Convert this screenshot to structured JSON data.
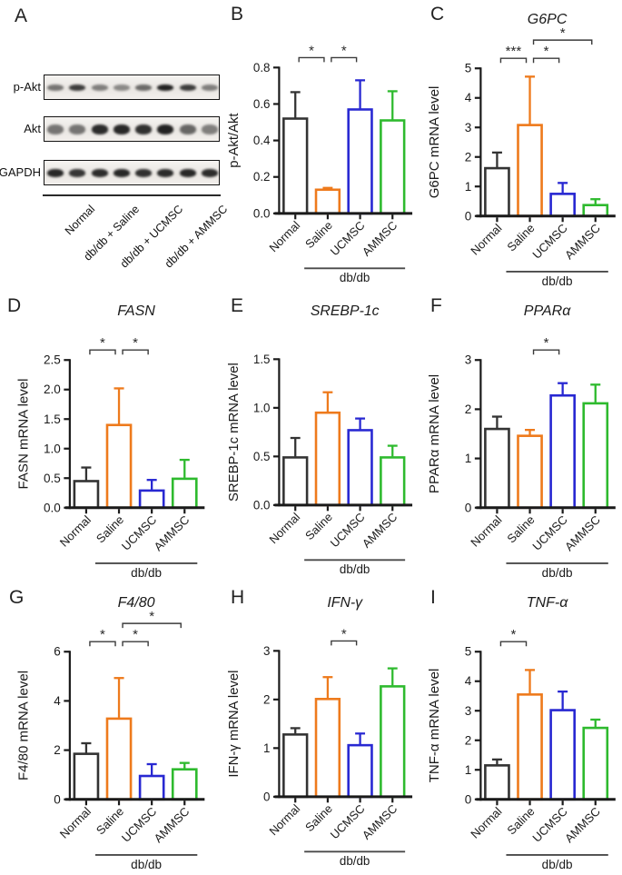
{
  "palette": {
    "black": "#333333",
    "orange": "#ee7a1c",
    "blue": "#2828d2",
    "green": "#2eba2e",
    "axis": "#1a1a1a"
  },
  "panel_a": {
    "panel_label": "A",
    "row_labels": [
      "p-Akt",
      "Akt",
      "GAPDH"
    ],
    "band_intensities": [
      [
        0.55,
        0.82,
        0.5,
        0.45,
        0.6,
        0.95,
        0.82,
        0.5
      ],
      [
        0.55,
        0.55,
        0.9,
        0.92,
        0.88,
        0.95,
        0.62,
        0.5
      ],
      [
        0.92,
        0.85,
        0.9,
        0.92,
        0.88,
        0.9,
        0.92,
        0.9
      ]
    ],
    "band_heights": [
      7,
      11,
      9
    ],
    "group_labels": [
      "Normal",
      "db/db + Saline",
      "db/db + UCMSC",
      "db/db + AMMSC"
    ]
  },
  "chart_data": [
    {
      "panel_label": "B",
      "type": "bar",
      "title": "",
      "ylabel": "p-Akt/Akt",
      "ylim": [
        0,
        0.8
      ],
      "yticks": [
        0,
        0.2,
        0.4,
        0.6,
        0.8
      ],
      "ytick_labels": [
        "0.0",
        "0.2",
        "0.4",
        "0.6",
        "0.8"
      ],
      "categories": [
        "Normal",
        "Saline",
        "UCMSC",
        "AMMSC"
      ],
      "values": [
        0.52,
        0.13,
        0.57,
        0.51
      ],
      "errors": [
        0.145,
        0.01,
        0.16,
        0.16
      ],
      "bar_colors": [
        "#333333",
        "#ee7a1c",
        "#2828d2",
        "#2eba2e"
      ],
      "significance": [
        {
          "from": 0,
          "to": 1,
          "label": "*",
          "level": 0
        },
        {
          "from": 1,
          "to": 2,
          "label": "*",
          "level": 0
        }
      ],
      "group_label": "db/db",
      "group_span": [
        1,
        3
      ]
    },
    {
      "panel_label": "C",
      "type": "bar",
      "title": "G6PC",
      "ylabel": "G6PC mRNA level",
      "ylim": [
        0,
        5
      ],
      "yticks": [
        0,
        1,
        2,
        3,
        4,
        5
      ],
      "ytick_labels": [
        "0",
        "1",
        "2",
        "3",
        "4",
        "5"
      ],
      "categories": [
        "Normal",
        "Saline",
        "UCMSC",
        "AMMSC"
      ],
      "values": [
        1.62,
        3.08,
        0.75,
        0.37
      ],
      "errors": [
        0.53,
        1.64,
        0.37,
        0.2
      ],
      "bar_colors": [
        "#333333",
        "#ee7a1c",
        "#2828d2",
        "#2eba2e"
      ],
      "significance": [
        {
          "from": 0,
          "to": 1,
          "label": "***",
          "level": 0
        },
        {
          "from": 1,
          "to": 2,
          "label": "*",
          "level": 0
        },
        {
          "from": 1,
          "to": 3,
          "label": "*",
          "level": 1
        }
      ],
      "group_label": "db/db",
      "group_span": [
        1,
        3
      ]
    },
    {
      "panel_label": "D",
      "type": "bar",
      "title": "FASN",
      "ylabel": "FASN mRNA level",
      "ylim": [
        0,
        2.5
      ],
      "yticks": [
        0,
        0.5,
        1,
        1.5,
        2,
        2.5
      ],
      "ytick_labels": [
        "0.0",
        "0.5",
        "1.0",
        "1.5",
        "2.0",
        "2.5"
      ],
      "categories": [
        "Normal",
        "Saline",
        "UCMSC",
        "AMMSC"
      ],
      "values": [
        0.45,
        1.4,
        0.29,
        0.49
      ],
      "errors": [
        0.23,
        0.62,
        0.18,
        0.32
      ],
      "bar_colors": [
        "#333333",
        "#ee7a1c",
        "#2828d2",
        "#2eba2e"
      ],
      "significance": [
        {
          "from": 0,
          "to": 1,
          "label": "*",
          "level": 0
        },
        {
          "from": 1,
          "to": 2,
          "label": "*",
          "level": 0
        }
      ],
      "group_label": "db/db",
      "group_span": [
        1,
        3
      ]
    },
    {
      "panel_label": "E",
      "type": "bar",
      "title": "SREBP-1c",
      "ylabel": "SREBP-1c mRNA level",
      "ylim": [
        0,
        1.5
      ],
      "yticks": [
        0,
        0.5,
        1,
        1.5
      ],
      "ytick_labels": [
        "0.0",
        "0.5",
        "1.0",
        "1.5"
      ],
      "categories": [
        "Normal",
        "Saline",
        "UCMSC",
        "AMMSC"
      ],
      "values": [
        0.49,
        0.95,
        0.77,
        0.49
      ],
      "errors": [
        0.2,
        0.21,
        0.12,
        0.12
      ],
      "bar_colors": [
        "#333333",
        "#ee7a1c",
        "#2828d2",
        "#2eba2e"
      ],
      "significance": [],
      "group_label": "db/db",
      "group_span": [
        1,
        3
      ]
    },
    {
      "panel_label": "F",
      "type": "bar",
      "title": "PPARα",
      "ylabel": "PPARα mRNA level",
      "ylim": [
        0,
        3
      ],
      "yticks": [
        0,
        1,
        2,
        3
      ],
      "ytick_labels": [
        "0",
        "1",
        "2",
        "3"
      ],
      "categories": [
        "Normal",
        "Saline",
        "UCMSC",
        "AMMSC"
      ],
      "values": [
        1.6,
        1.46,
        2.28,
        2.12
      ],
      "errors": [
        0.25,
        0.12,
        0.25,
        0.38
      ],
      "bar_colors": [
        "#333333",
        "#ee7a1c",
        "#2828d2",
        "#2eba2e"
      ],
      "significance": [
        {
          "from": 1,
          "to": 2,
          "label": "*",
          "level": 0
        }
      ],
      "group_label": "db/db",
      "group_span": [
        1,
        3
      ]
    },
    {
      "panel_label": "G",
      "type": "bar",
      "title": "F4/80",
      "ylabel": "F4/80 mRNA level",
      "ylim": [
        0,
        6
      ],
      "yticks": [
        0,
        2,
        4,
        6
      ],
      "ytick_labels": [
        "0",
        "2",
        "4",
        "6"
      ],
      "categories": [
        "Normal",
        "Saline",
        "UCMSC",
        "AMMSC"
      ],
      "values": [
        1.85,
        3.28,
        0.95,
        1.22
      ],
      "errors": [
        0.43,
        1.65,
        0.48,
        0.26
      ],
      "bar_colors": [
        "#333333",
        "#ee7a1c",
        "#2828d2",
        "#2eba2e"
      ],
      "significance": [
        {
          "from": 0,
          "to": 1,
          "label": "*",
          "level": 0
        },
        {
          "from": 1,
          "to": 2,
          "label": "*",
          "level": 0
        },
        {
          "from": 1,
          "to": 3,
          "label": "*",
          "level": 1
        }
      ],
      "group_label": "db/db",
      "group_span": [
        1,
        3
      ]
    },
    {
      "panel_label": "H",
      "type": "bar",
      "title": "IFN-γ",
      "ylabel": "IFN-γ mRNA level",
      "ylim": [
        0,
        3
      ],
      "yticks": [
        0,
        1,
        2,
        3
      ],
      "ytick_labels": [
        "0",
        "1",
        "2",
        "3"
      ],
      "categories": [
        "Normal",
        "Saline",
        "UCMSC",
        "AMMSC"
      ],
      "values": [
        1.28,
        2.01,
        1.06,
        2.27
      ],
      "errors": [
        0.13,
        0.45,
        0.24,
        0.37
      ],
      "bar_colors": [
        "#333333",
        "#ee7a1c",
        "#2828d2",
        "#2eba2e"
      ],
      "significance": [
        {
          "from": 1,
          "to": 2,
          "label": "*",
          "level": 0
        }
      ],
      "group_label": "db/db",
      "group_span": [
        1,
        3
      ]
    },
    {
      "panel_label": "I",
      "type": "bar",
      "title": "TNF-α",
      "ylabel": "TNF-α mRNA level",
      "ylim": [
        0,
        5
      ],
      "yticks": [
        0,
        1,
        2,
        3,
        4,
        5
      ],
      "ytick_labels": [
        "0",
        "1",
        "2",
        "3",
        "4",
        "5"
      ],
      "categories": [
        "Normal",
        "Saline",
        "UCMSC",
        "AMMSC"
      ],
      "values": [
        1.15,
        3.55,
        3.02,
        2.42
      ],
      "errors": [
        0.2,
        0.83,
        0.63,
        0.28
      ],
      "bar_colors": [
        "#333333",
        "#ee7a1c",
        "#2828d2",
        "#2eba2e"
      ],
      "significance": [
        {
          "from": 0,
          "to": 1,
          "label": "*",
          "level": 0
        }
      ],
      "group_label": "db/db",
      "group_span": [
        1,
        3
      ]
    }
  ]
}
